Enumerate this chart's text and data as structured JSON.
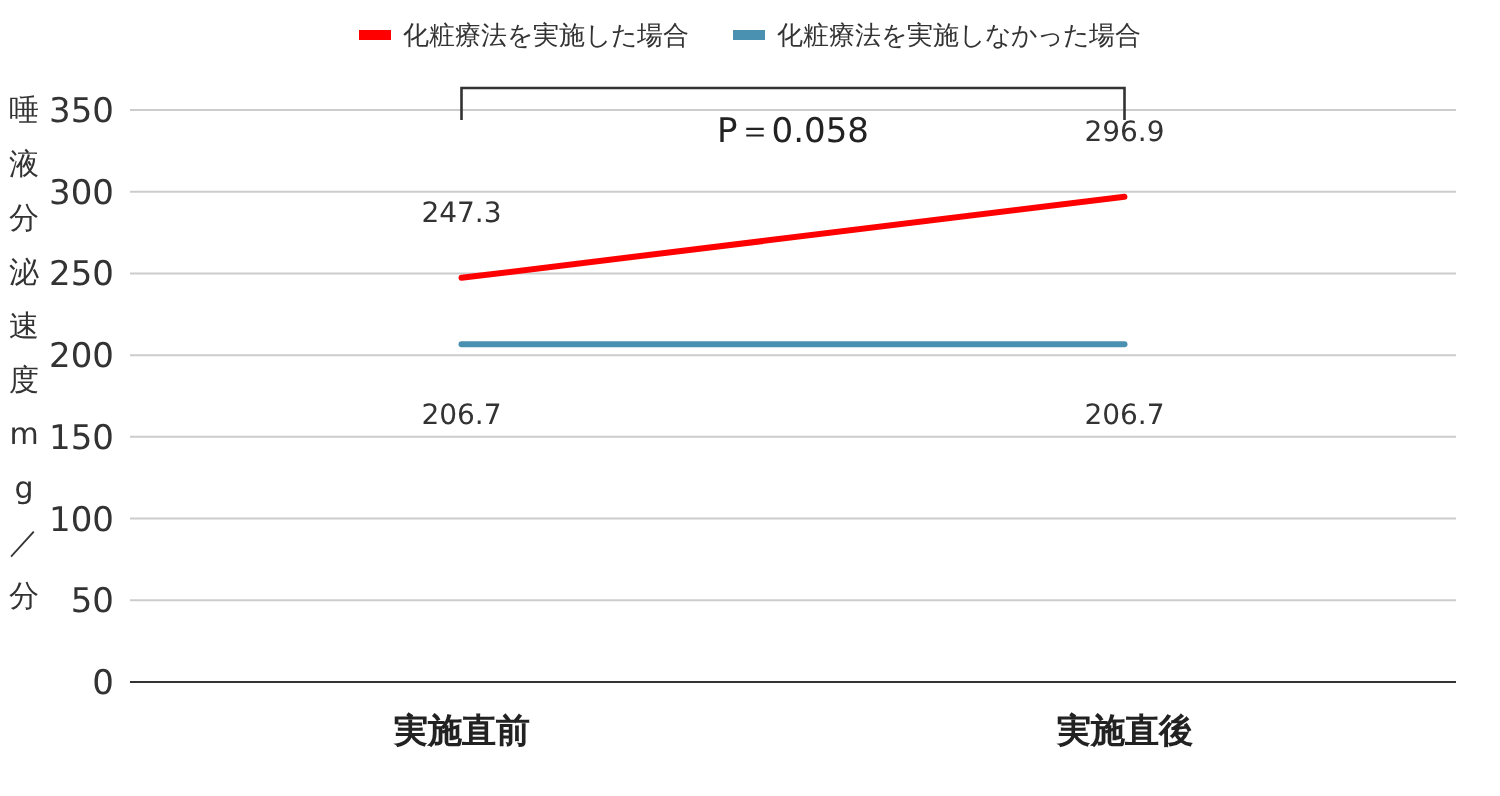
{
  "chart_data": {
    "type": "line",
    "ylabel": "唾液分泌速度mg／分",
    "categories": [
      "実施直前",
      "実施直後"
    ],
    "series": [
      {
        "name": "化粧療法を実施した場合",
        "color": "#ff0000",
        "values": [
          247.3,
          296.9
        ]
      },
      {
        "name": "化粧療法を実施しなかった場合",
        "color": "#4a90b0",
        "values": [
          206.7,
          206.7
        ]
      }
    ],
    "ylim": [
      0,
      350
    ],
    "yticks": [
      0,
      50,
      100,
      150,
      200,
      250,
      300,
      350
    ],
    "grid": "y",
    "legend": "top",
    "data_labels": true,
    "annotations": [
      "P＝0.058"
    ]
  }
}
